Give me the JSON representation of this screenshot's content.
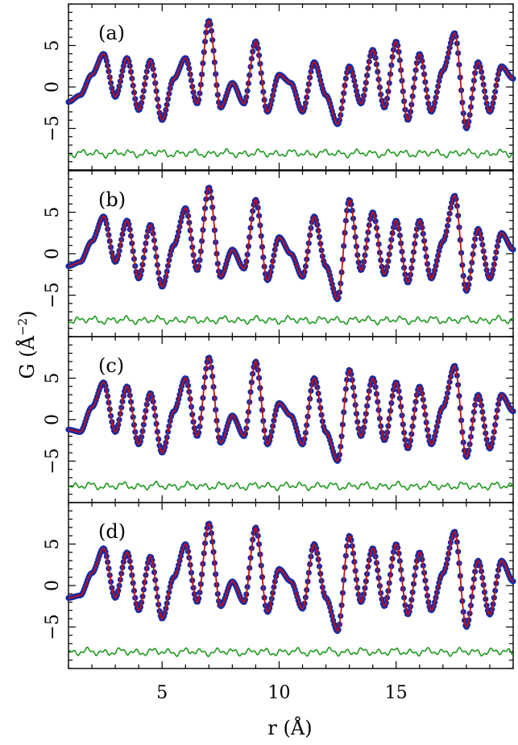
{
  "chart_data": {
    "type": "line",
    "xlabel": "r (Å)",
    "ylabel": "G (Å",
    "ylabel_exponent": "−2",
    "ylabel_close": ")",
    "xlim": [
      1.0,
      20.0
    ],
    "ylim": [
      -10.0,
      10.0
    ],
    "x_ticks": [
      5,
      10,
      15
    ],
    "y_ticks": [
      -5,
      0,
      5
    ],
    "x_tick_labels": [
      "5",
      "10",
      "15"
    ],
    "y_tick_labels": [
      "−5",
      "0",
      "5"
    ],
    "difference_offset": -8.0,
    "colors": {
      "data": "#1a2aa0",
      "fit": "#c0101a",
      "difference": "#1f9a1f"
    },
    "x": [
      1.0,
      1.5,
      2.0,
      2.5,
      3.0,
      3.5,
      4.0,
      4.5,
      5.0,
      5.5,
      6.0,
      6.5,
      7.0,
      7.5,
      8.0,
      8.5,
      9.0,
      9.5,
      10.0,
      10.5,
      11.0,
      11.5,
      12.0,
      12.5,
      13.0,
      13.5,
      14.0,
      14.5,
      15.0,
      15.5,
      16.0,
      16.5,
      17.0,
      17.5,
      18.0,
      18.5,
      19.0,
      19.5,
      20.0
    ],
    "panels": [
      {
        "label": "(a)",
        "data": [
          -1.8,
          -1.0,
          1.5,
          4.0,
          -1.2,
          3.5,
          -2.8,
          3.2,
          -4.0,
          1.0,
          3.5,
          -2.0,
          8.0,
          -2.5,
          0.5,
          -2.0,
          5.5,
          -3.0,
          1.5,
          0.5,
          -3.0,
          3.0,
          -1.0,
          -4.5,
          2.5,
          -2.0,
          4.5,
          -2.5,
          5.5,
          -4.0,
          4.0,
          -3.0,
          2.0,
          6.5,
          -5.0,
          3.0,
          -3.0,
          2.5,
          1.0
        ]
      },
      {
        "label": "(b)",
        "data": [
          -1.5,
          -1.0,
          1.5,
          4.5,
          -1.0,
          4.0,
          -3.0,
          3.5,
          -4.0,
          1.0,
          5.5,
          -2.0,
          8.0,
          -2.8,
          0.5,
          -1.8,
          6.5,
          -3.2,
          2.0,
          0.0,
          -2.8,
          4.5,
          -1.5,
          -5.5,
          6.5,
          -2.0,
          5.0,
          -2.5,
          4.0,
          -3.5,
          4.0,
          -3.0,
          1.5,
          7.0,
          -4.5,
          3.0,
          -3.0,
          2.5,
          0.5
        ]
      },
      {
        "label": "(c)",
        "data": [
          -1.2,
          -1.5,
          1.5,
          4.5,
          -1.5,
          4.0,
          -3.0,
          3.2,
          -4.0,
          1.0,
          5.0,
          -2.0,
          7.5,
          -2.8,
          0.5,
          -2.0,
          7.0,
          -3.0,
          2.0,
          0.5,
          -3.0,
          5.0,
          -1.5,
          -5.0,
          6.0,
          -2.0,
          5.0,
          -2.5,
          4.5,
          -3.5,
          4.0,
          -3.0,
          1.5,
          6.5,
          -4.5,
          3.0,
          -3.5,
          3.0,
          1.0
        ]
      },
      {
        "label": "(d)",
        "data": [
          -1.5,
          -1.2,
          1.5,
          4.5,
          -1.5,
          4.0,
          -3.0,
          3.5,
          -4.0,
          1.0,
          5.0,
          -2.0,
          7.5,
          -2.5,
          0.5,
          -2.0,
          7.0,
          -3.2,
          2.0,
          0.5,
          -2.8,
          5.0,
          -1.5,
          -5.5,
          6.0,
          -2.0,
          4.5,
          -2.5,
          5.0,
          -3.5,
          4.0,
          -3.0,
          1.5,
          6.5,
          -5.0,
          3.0,
          -3.5,
          3.0,
          0.5
        ]
      }
    ]
  }
}
